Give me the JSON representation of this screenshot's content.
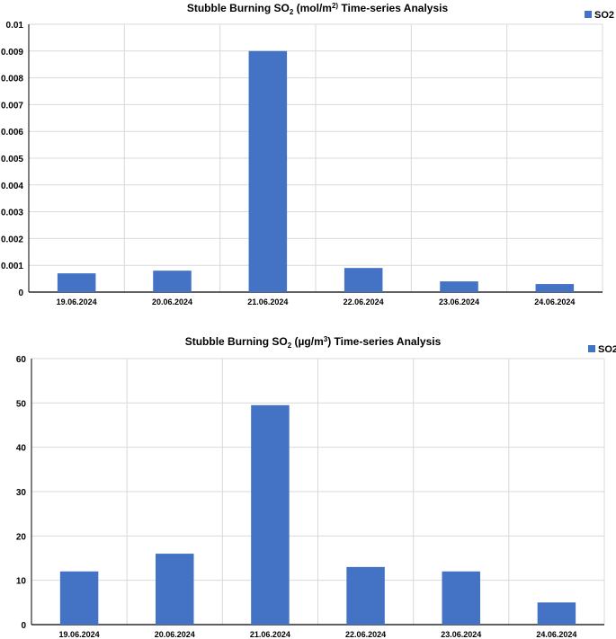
{
  "chart_data": [
    {
      "type": "bar",
      "title_prefix": "Stubble Burning  SO",
      "title_sub": "2",
      "title_unit_open": " (mol/m",
      "title_unit_sup": "2)",
      "title_suffix": " Time-series Analysis",
      "categories": [
        "19.06.2024",
        "20.06.2024",
        "21.06.2024",
        "22.06.2024",
        "23.06.2024",
        "24.06.2024"
      ],
      "series": [
        {
          "name": "SO2",
          "values": [
            0.0007,
            0.0008,
            0.009,
            0.0009,
            0.0004,
            0.0003
          ]
        }
      ],
      "ylim": [
        0,
        0.01
      ],
      "yticks": [
        "0",
        "0.001",
        "0.002",
        "0.003",
        "0.004",
        "0.005",
        "0.006",
        "0.007",
        "0.008",
        "0.009",
        "0.01"
      ],
      "grid": true,
      "legend": "top-right",
      "bar_color": "#4472C4"
    },
    {
      "type": "bar",
      "title_prefix": "Stubble Burning  SO",
      "title_sub": "2",
      "title_unit_open": " (µg/m",
      "title_unit_sup": "3",
      "title_suffix": ") Time-series Analysis",
      "categories": [
        "19.06.2024",
        "20.06.2024",
        "21.06.2024",
        "22.06.2024",
        "23.06.2024",
        "24.06.2024"
      ],
      "series": [
        {
          "name": "SO2",
          "values": [
            12,
            16,
            49.5,
            13,
            12,
            5
          ]
        }
      ],
      "ylim": [
        0,
        60
      ],
      "yticks": [
        "0",
        "10",
        "20",
        "30",
        "40",
        "50",
        "60"
      ],
      "grid": true,
      "legend": "top-right",
      "bar_color": "#4472C4"
    }
  ]
}
